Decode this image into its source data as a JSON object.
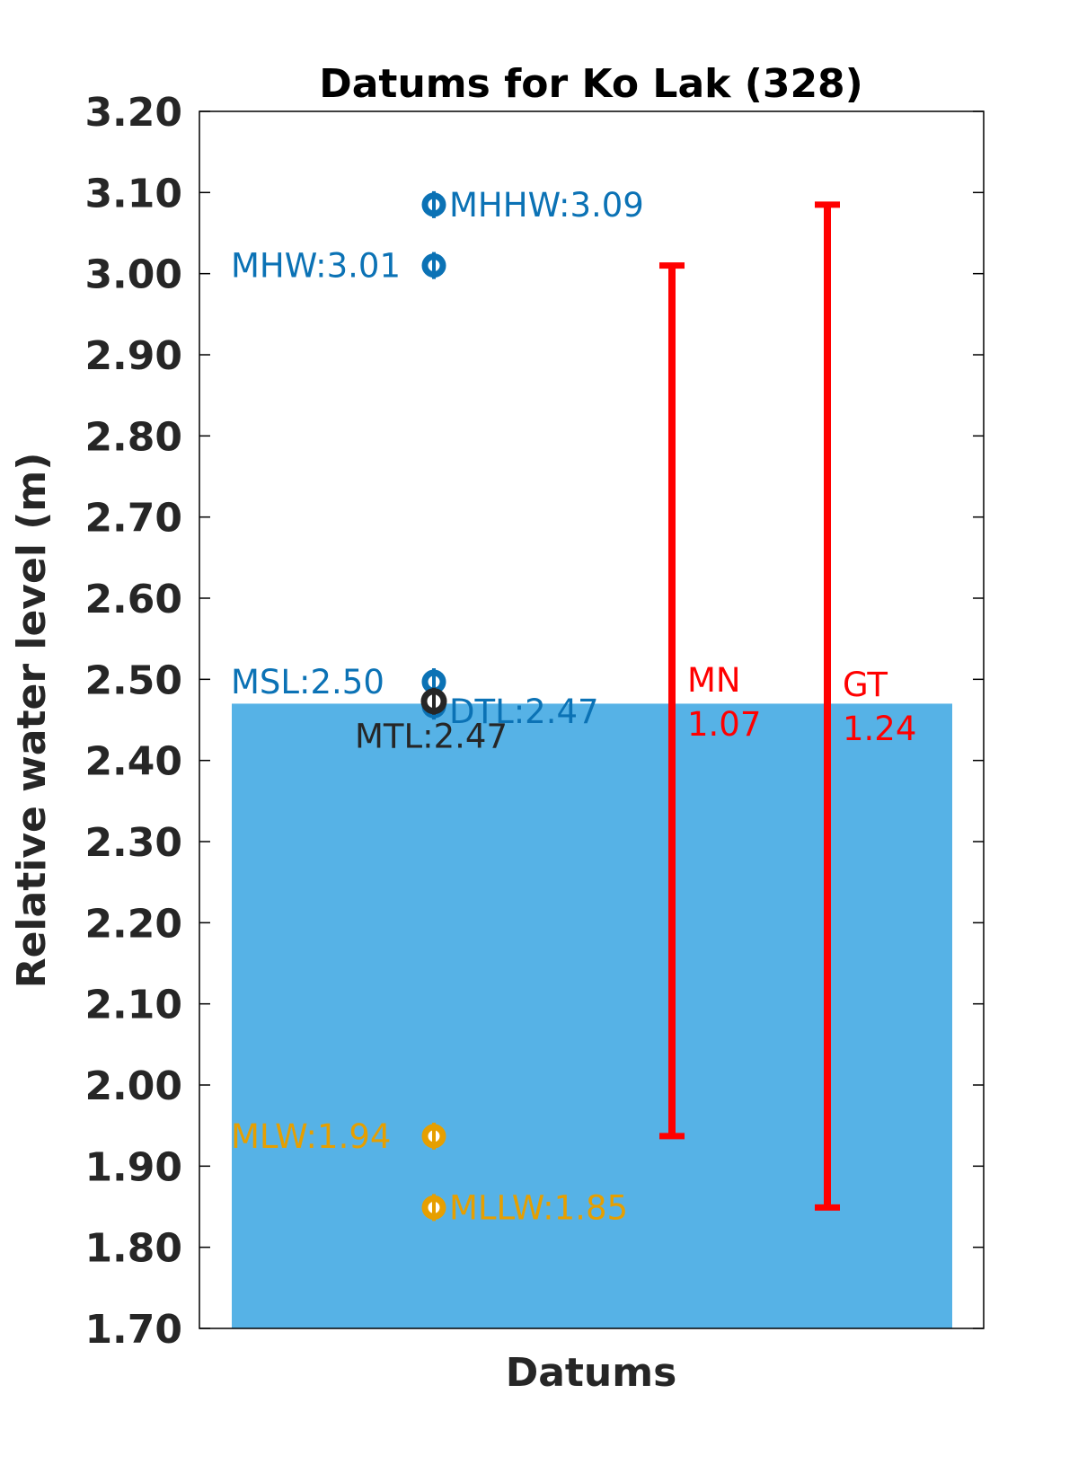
{
  "chart_data": {
    "type": "scatter",
    "title": "Datums for Ko Lak (328)",
    "xlabel": "Datums",
    "ylabel": "Relative water level (m)",
    "ylim": [
      1.7,
      3.2
    ],
    "yticks": [
      "1.70",
      "1.80",
      "1.90",
      "2.00",
      "2.10",
      "2.20",
      "2.30",
      "2.40",
      "2.50",
      "2.60",
      "2.70",
      "2.80",
      "2.90",
      "3.00",
      "3.10",
      "3.20"
    ],
    "grid": false,
    "water_fill": {
      "top": 2.47,
      "color": "#56B2E6"
    },
    "datums": [
      {
        "name": "MHHW",
        "value": 3.085,
        "label": "MHHW:3.09",
        "color": "#0B72B5",
        "label_side": "right"
      },
      {
        "name": "MHW",
        "value": 3.01,
        "label": "MHW:3.01",
        "color": "#0B72B5",
        "label_side": "left"
      },
      {
        "name": "MSL",
        "value": 2.497,
        "label": "MSL:2.50",
        "color": "#0B72B5",
        "label_side": "left"
      },
      {
        "name": "DTL",
        "value": 2.467,
        "label": "DTL:2.47",
        "color": "#0B72B5",
        "label_side": "right"
      },
      {
        "name": "MTL",
        "value": 2.473,
        "label": "MTL:2.47",
        "color": "#262626",
        "label_side": "below"
      },
      {
        "name": "MLW",
        "value": 1.937,
        "label": "MLW:1.94",
        "color": "#E69F00",
        "label_side": "left"
      },
      {
        "name": "MLLW",
        "value": 1.849,
        "label": "MLLW:1.85",
        "color": "#E69F00",
        "label_side": "right"
      }
    ],
    "ranges": [
      {
        "name": "MN",
        "label_name": "MN",
        "label_value": "1.07",
        "low": 1.937,
        "high": 3.01,
        "color": "#FF0000"
      },
      {
        "name": "GT",
        "label_name": "GT",
        "label_value": "1.24",
        "low": 1.849,
        "high": 3.085,
        "color": "#FF0000"
      }
    ]
  }
}
